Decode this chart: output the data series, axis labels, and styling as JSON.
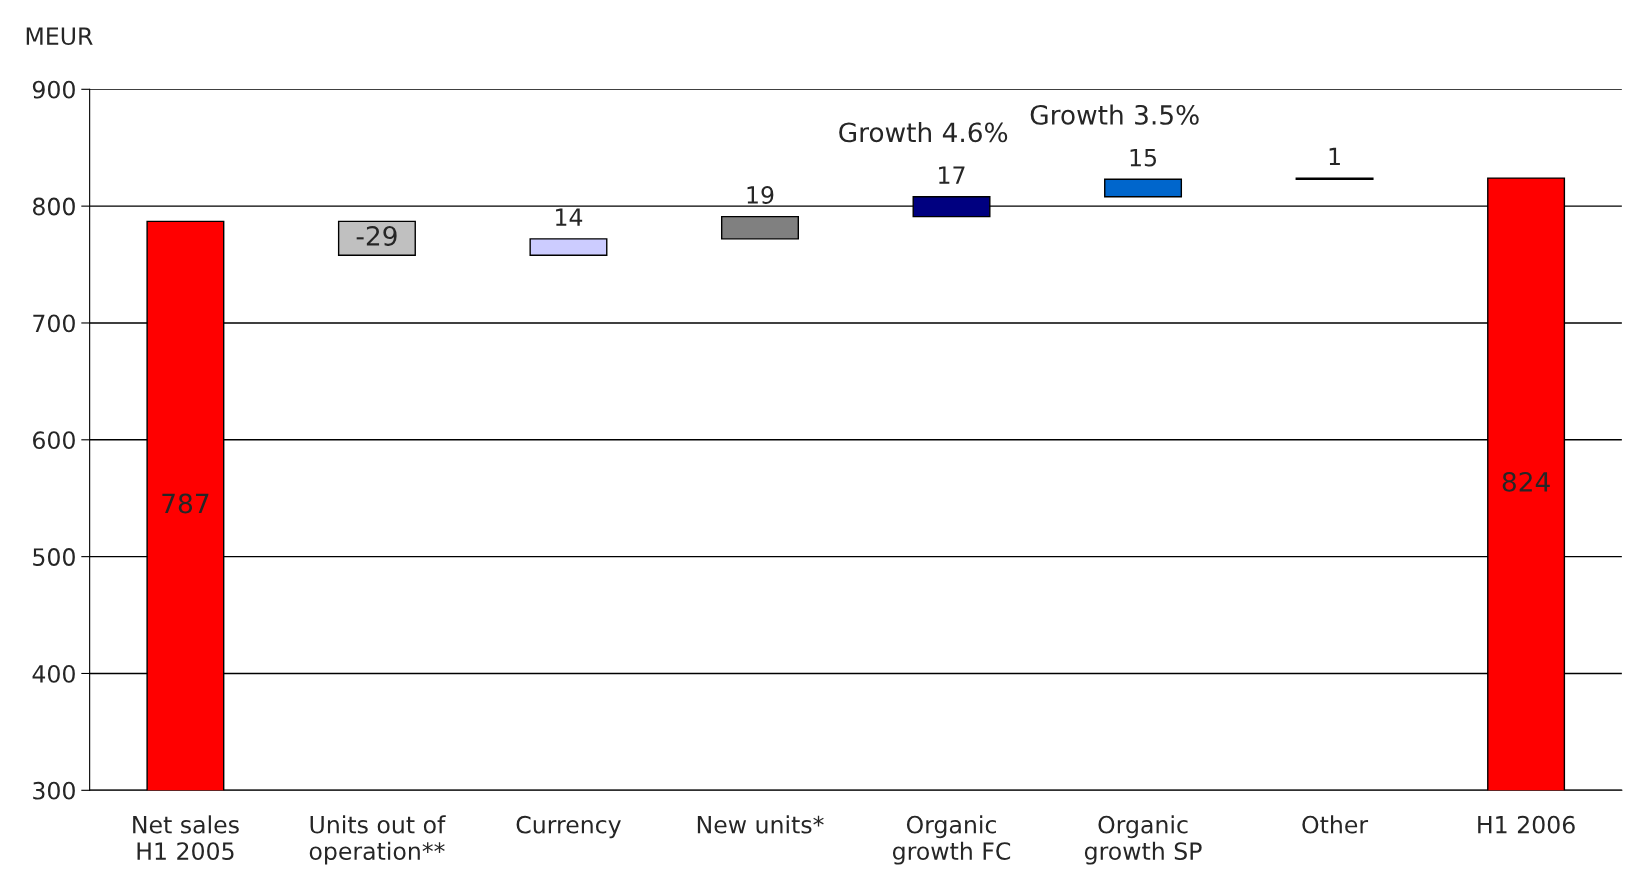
{
  "chart_data": {
    "type": "bar",
    "ylabel": "MEUR",
    "categories": [
      "Net sales\nH1 2005",
      "Units out of\noperation**",
      "Currency",
      "New units*",
      "Organic\ngrowth FC",
      "Organic\ngrowth SP",
      "Other",
      "H1 2006"
    ],
    "values": [
      787,
      -29,
      14,
      19,
      17,
      15,
      1,
      824
    ],
    "base": [
      0,
      787,
      758,
      772,
      791,
      808,
      823,
      0
    ],
    "colors": [
      "#ff0000",
      "#c0c0c0",
      "#ccccff",
      "#808080",
      "#000080",
      "#0066cc",
      "#0066cc",
      "#ff0000"
    ],
    "ylim": [
      300,
      900
    ],
    "yticks": [
      300,
      400,
      500,
      600,
      700,
      800,
      900
    ],
    "grid": "y",
    "data_labels": true,
    "annotations": [
      "Growth 4.6%",
      "Growth 3.5%"
    ]
  }
}
